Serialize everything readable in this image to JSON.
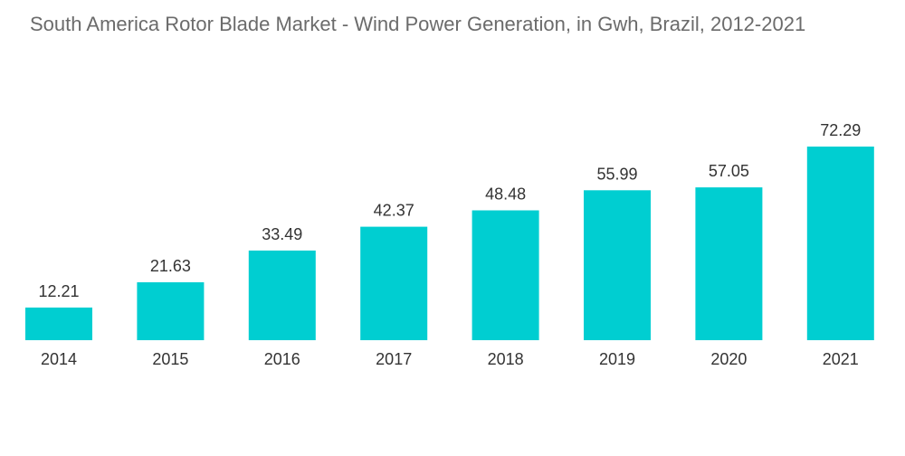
{
  "chart_data": {
    "type": "bar",
    "title": "South America Rotor Blade Market - Wind Power Generation, in Gwh, Brazil, 2012-2021",
    "categories": [
      "2014",
      "2015",
      "2016",
      "2017",
      "2018",
      "2019",
      "2020",
      "2021"
    ],
    "values": [
      12.21,
      21.63,
      33.49,
      42.37,
      48.48,
      55.99,
      57.05,
      72.29
    ],
    "value_labels": [
      "12.21",
      "21.63",
      "33.49",
      "42.37",
      "48.48",
      "55.99",
      "57.05",
      "72.29"
    ],
    "xlabel": "",
    "ylabel": "",
    "ylim": [
      0,
      72.29
    ],
    "grid": false,
    "bar_color": "#00CED1"
  }
}
